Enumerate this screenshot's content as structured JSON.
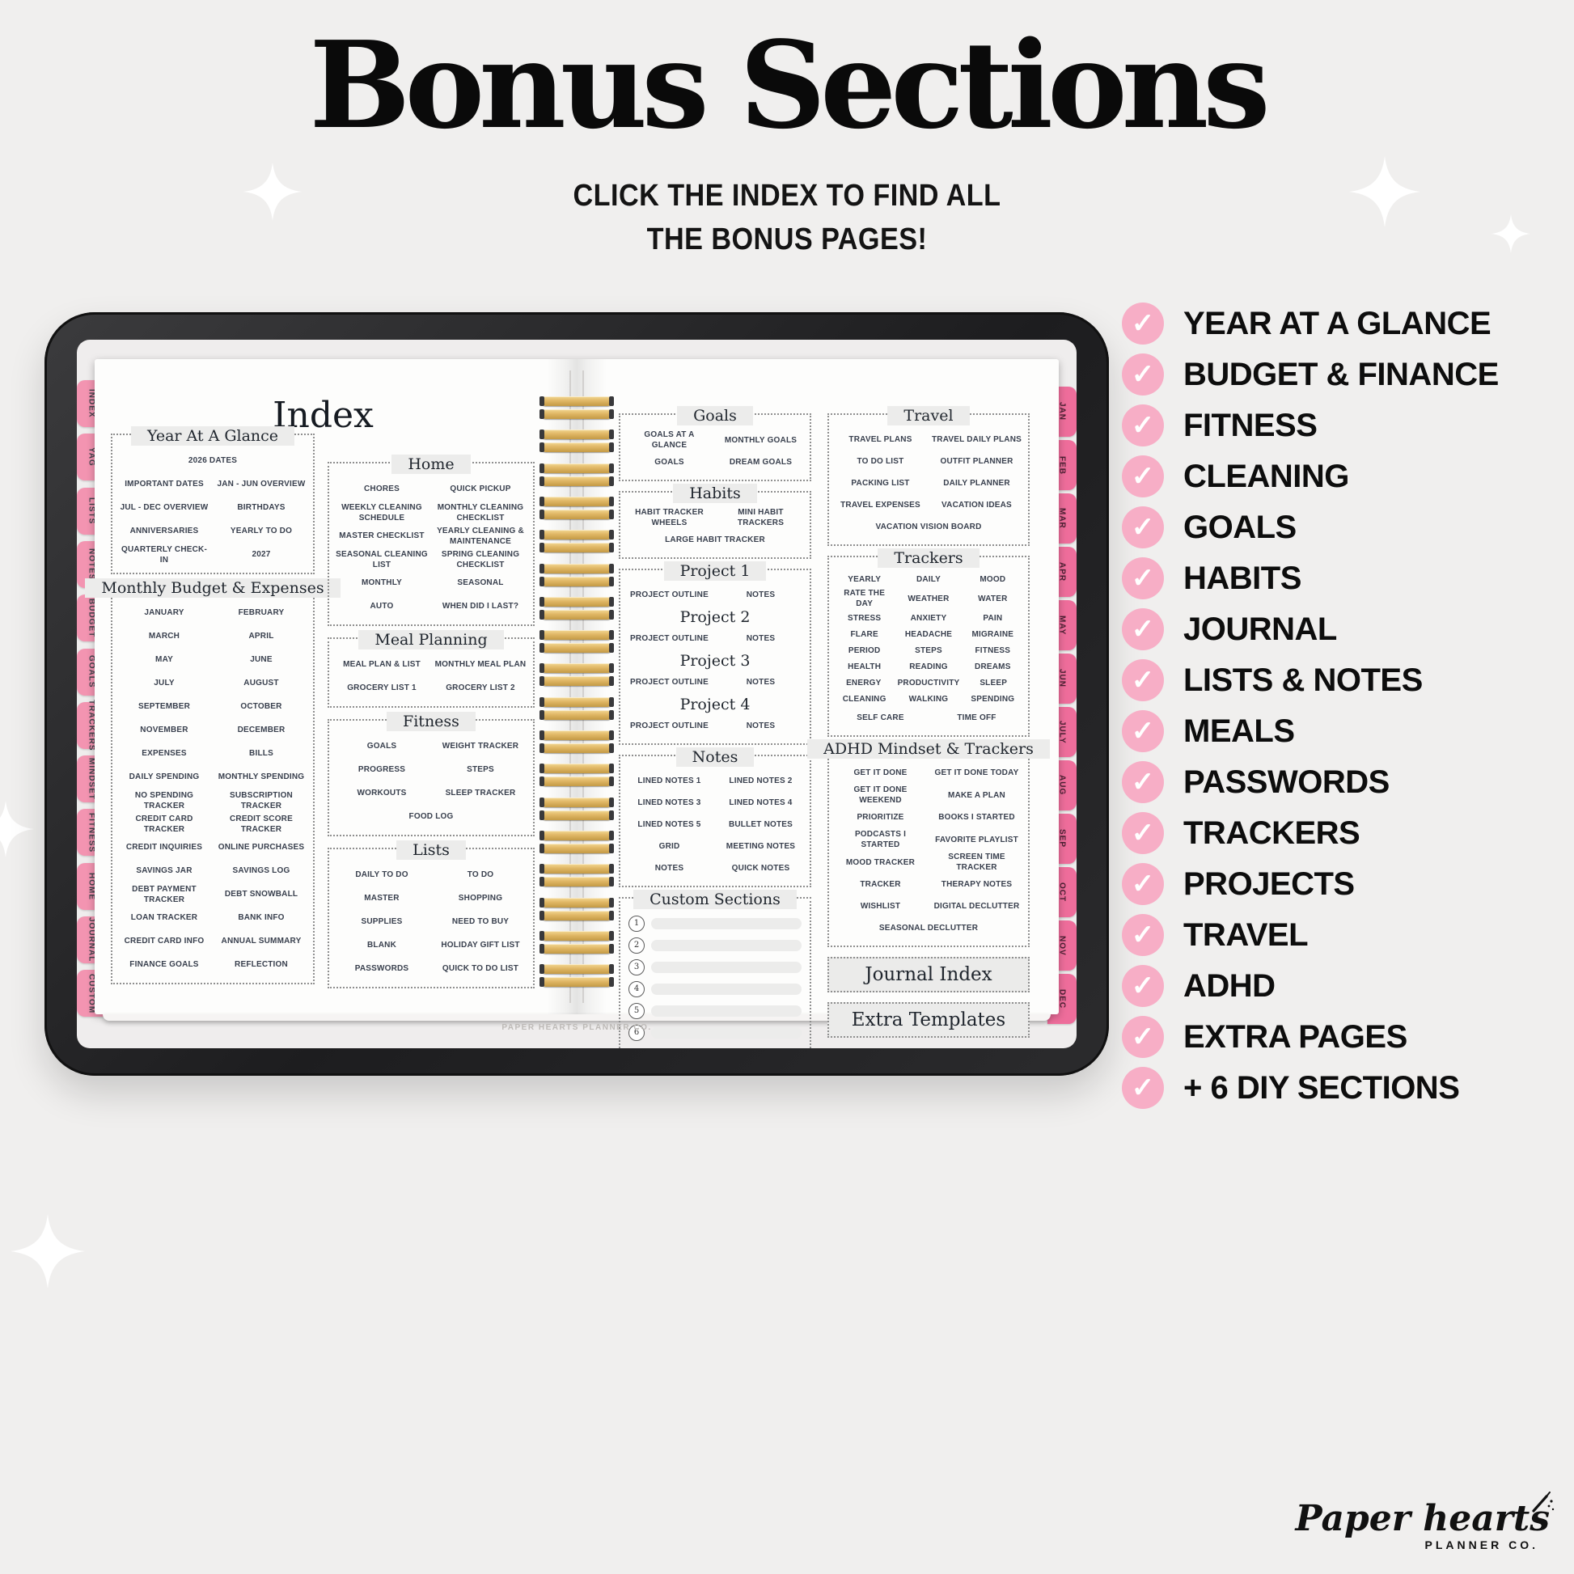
{
  "header": {
    "title": "Bonus Sections",
    "subtitle_line1": "CLICK THE INDEX TO FIND ALL",
    "subtitle_line2": "THE BONUS PAGES!"
  },
  "checklist": [
    "YEAR AT A GLANCE",
    "BUDGET & FINANCE",
    "FITNESS",
    "CLEANING",
    "GOALS",
    "HABITS",
    "JOURNAL",
    "LISTS & NOTES",
    "MEALS",
    "PASSWORDS",
    "TRACKERS",
    "PROJECTS",
    "TRAVEL",
    "ADHD",
    "EXTRA PAGES",
    "+ 6 DIY SECTIONS"
  ],
  "colors": {
    "check_pink": "#f7aec6",
    "side_tab_pink": "#f394b1",
    "month_tab_pink": "#ee6d9b",
    "spiral_gold": "#e0b765"
  },
  "tablet": {
    "page_title": "Index",
    "page_footer": "PAPER HEARTS PLANNER CO.",
    "side_tabs": [
      "INDEX",
      "YAG",
      "LISTS",
      "NOTES",
      "BUDGET",
      "GOALS",
      "TRACKERS",
      "MINDSET",
      "FITNESS",
      "HOME",
      "JOURNAL",
      "CUSTOM"
    ],
    "month_tabs": [
      "JAN",
      "FEB",
      "MAR",
      "APR",
      "MAY",
      "JUN",
      "JULY",
      "AUG",
      "SEP",
      "OCT",
      "NOV",
      "DEC"
    ],
    "columns": [
      [
        {
          "title": "Year At A Glance",
          "rows": [
            [
              "2026 DATES"
            ],
            [
              "IMPORTANT DATES",
              "JAN - JUN OVERVIEW"
            ],
            [
              "JUL - DEC OVERVIEW",
              "BIRTHDAYS"
            ],
            [
              "ANNIVERSARIES",
              "YEARLY TO DO"
            ],
            [
              "QUARTERLY CHECK-IN",
              "2027"
            ]
          ]
        },
        {
          "title": "Monthly Budget & Expenses",
          "rows": [
            [
              "JANUARY",
              "FEBRUARY"
            ],
            [
              "MARCH",
              "APRIL"
            ],
            [
              "MAY",
              "JUNE"
            ],
            [
              "JULY",
              "AUGUST"
            ],
            [
              "SEPTEMBER",
              "OCTOBER"
            ],
            [
              "NOVEMBER",
              "DECEMBER"
            ],
            [
              "EXPENSES",
              "BILLS"
            ],
            [
              "DAILY SPENDING",
              "MONTHLY SPENDING"
            ],
            [
              "NO SPENDING TRACKER",
              "SUBSCRIPTION TRACKER"
            ],
            [
              "CREDIT CARD TRACKER",
              "CREDIT SCORE TRACKER"
            ],
            [
              "CREDIT INQUIRIES",
              "ONLINE PURCHASES"
            ],
            [
              "SAVINGS JAR",
              "SAVINGS LOG"
            ],
            [
              "DEBT PAYMENT TRACKER",
              "DEBT SNOWBALL"
            ],
            [
              "LOAN TRACKER",
              "BANK INFO"
            ],
            [
              "CREDIT CARD INFO",
              "ANNUAL SUMMARY"
            ],
            [
              "FINANCE GOALS",
              "REFLECTION"
            ]
          ]
        }
      ],
      [
        {
          "title": "Home",
          "rows": [
            [
              "CHORES",
              "QUICK PICKUP"
            ],
            [
              "WEEKLY CLEANING SCHEDULE",
              "MONTHLY CLEANING CHECKLIST"
            ],
            [
              "MASTER CHECKLIST",
              "YEARLY CLEANING & MAINTENANCE"
            ],
            [
              "SEASONAL CLEANING LIST",
              "SPRING CLEANING CHECKLIST"
            ],
            [
              "MONTHLY",
              "SEASONAL"
            ],
            [
              "AUTO",
              "WHEN DID I LAST?"
            ]
          ]
        },
        {
          "title": "Meal Planning",
          "rows": [
            [
              "MEAL PLAN & LIST",
              "MONTHLY MEAL PLAN"
            ],
            [
              "GROCERY LIST 1",
              "GROCERY LIST 2"
            ]
          ]
        },
        {
          "title": "Fitness",
          "rows": [
            [
              "GOALS",
              "WEIGHT TRACKER"
            ],
            [
              "PROGRESS",
              "STEPS"
            ],
            [
              "WORKOUTS",
              "SLEEP TRACKER"
            ],
            [
              "FOOD LOG"
            ]
          ]
        },
        {
          "title": "Lists",
          "rows": [
            [
              "DAILY TO DO",
              "TO DO"
            ],
            [
              "MASTER",
              "SHOPPING"
            ],
            [
              "SUPPLIES",
              "NEED TO BUY"
            ],
            [
              "BLANK",
              "HOLIDAY GIFT LIST"
            ],
            [
              "PASSWORDS",
              "QUICK TO DO LIST"
            ]
          ]
        }
      ],
      [
        {
          "title": "Goals",
          "rows": [
            [
              "GOALS AT A GLANCE",
              "MONTHLY GOALS"
            ],
            [
              "GOALS",
              "DREAM GOALS"
            ]
          ]
        },
        {
          "title": "Habits",
          "rows": [
            [
              "HABIT TRACKER WHEELS",
              "MINI HABIT TRACKERS"
            ],
            [
              "LARGE HABIT TRACKER"
            ]
          ]
        },
        {
          "title": "Project 1",
          "rows": [
            [
              "PROJECT OUTLINE",
              "NOTES"
            ]
          ],
          "subsections": [
            {
              "subtitle": "Project 2",
              "rows": [
                [
                  "PROJECT OUTLINE",
                  "NOTES"
                ]
              ]
            },
            {
              "subtitle": "Project 3",
              "rows": [
                [
                  "PROJECT OUTLINE",
                  "NOTES"
                ]
              ]
            },
            {
              "subtitle": "Project 4",
              "rows": [
                [
                  "PROJECT OUTLINE",
                  "NOTES"
                ]
              ]
            }
          ]
        },
        {
          "title": "Notes",
          "rows": [
            [
              "LINED NOTES 1",
              "LINED NOTES 2"
            ],
            [
              "LINED NOTES 3",
              "LINED NOTES 4"
            ],
            [
              "LINED NOTES 5",
              "BULLET NOTES"
            ],
            [
              "GRID",
              "MEETING NOTES"
            ],
            [
              "NOTES",
              "QUICK NOTES"
            ]
          ]
        },
        {
          "title": "Custom Sections",
          "type": "custom",
          "slots": [
            "1",
            "2",
            "3",
            "4",
            "5",
            "6"
          ]
        }
      ],
      [
        {
          "title": "Travel",
          "rows": [
            [
              "TRAVEL PLANS",
              "TRAVEL DAILY PLANS"
            ],
            [
              "TO DO LIST",
              "OUTFIT PLANNER"
            ],
            [
              "PACKING LIST",
              "DAILY PLANNER"
            ],
            [
              "TRAVEL EXPENSES",
              "VACATION IDEAS"
            ],
            [
              "VACATION VISION BOARD"
            ]
          ]
        },
        {
          "title": "Trackers",
          "rows": [
            [
              "YEARLY",
              "DAILY",
              "MOOD"
            ],
            [
              "RATE THE DAY",
              "WEATHER",
              "WATER"
            ],
            [
              "STRESS",
              "ANXIETY",
              "PAIN"
            ],
            [
              "FLARE",
              "HEADACHE",
              "MIGRAINE"
            ],
            [
              "PERIOD",
              "STEPS",
              "FITNESS"
            ],
            [
              "HEALTH",
              "READING",
              "DREAMS"
            ],
            [
              "ENERGY",
              "PRODUCTIVITY",
              "SLEEP"
            ],
            [
              "CLEANING",
              "WALKING",
              "SPENDING"
            ],
            [
              "SELF CARE",
              "TIME OFF"
            ]
          ]
        },
        {
          "title": "ADHD Mindset & Trackers",
          "rows": [
            [
              "GET IT DONE",
              "GET IT DONE TODAY"
            ],
            [
              "GET IT DONE WEEKEND",
              "MAKE A PLAN"
            ],
            [
              "PRIORITIZE",
              "BOOKS I STARTED"
            ],
            [
              "PODCASTS I STARTED",
              "FAVORITE PLAYLIST"
            ],
            [
              "MOOD TRACKER",
              "SCREEN TIME TRACKER"
            ],
            [
              "TRACKER",
              "THERAPY NOTES"
            ],
            [
              "WISHLIST",
              "DIGITAL DECLUTTER"
            ],
            [
              "SEASONAL DECLUTTER"
            ]
          ]
        },
        {
          "title": "Journal Index",
          "type": "banner"
        },
        {
          "title": "Extra Templates",
          "type": "banner"
        }
      ]
    ]
  },
  "logo": {
    "script_text": "Paper hearts",
    "sub_text": "PLANNER CO."
  }
}
